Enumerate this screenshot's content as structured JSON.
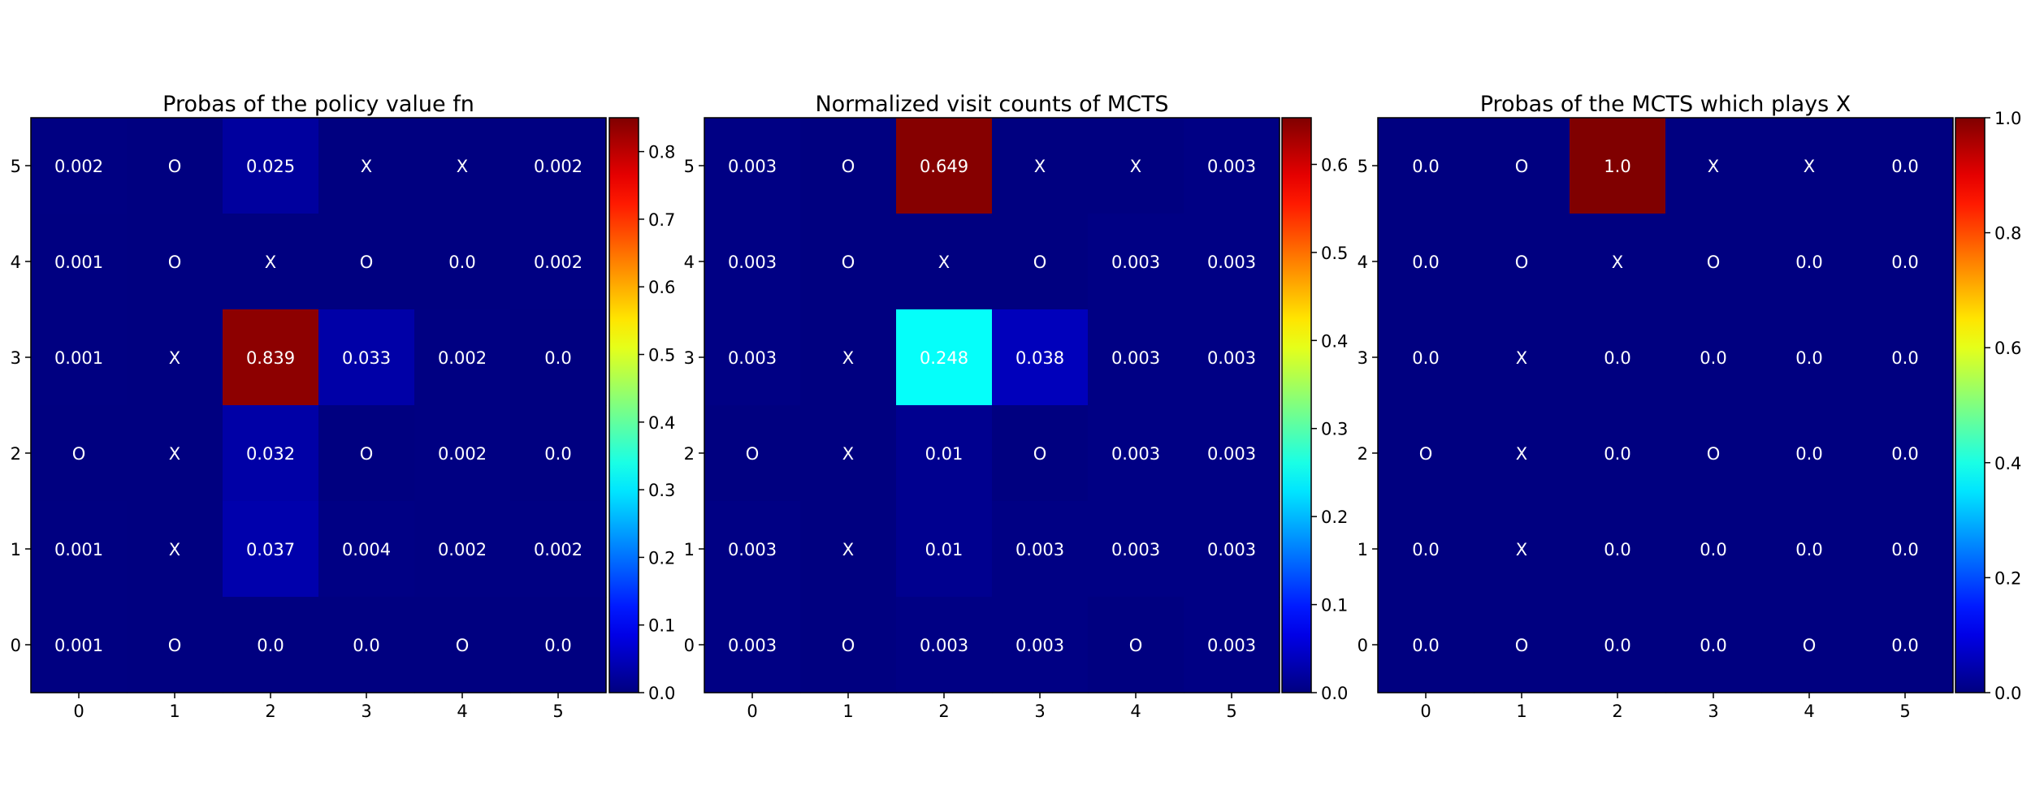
{
  "chart_data": [
    {
      "type": "heatmap",
      "title": "Probas of the policy value fn",
      "xlabel": "",
      "ylabel": "",
      "x_ticks": [
        "0",
        "1",
        "2",
        "3",
        "4",
        "5"
      ],
      "y_ticks_top_to_bottom": [
        "5",
        "4",
        "3",
        "2",
        "1",
        "0"
      ],
      "colormap": "jet",
      "vmin": 0.0,
      "vmax": 0.85,
      "colorbar_ticks": [
        "0.0",
        "0.1",
        "0.2",
        "0.3",
        "0.4",
        "0.5",
        "0.6",
        "0.7",
        "0.8"
      ],
      "rows_top_to_bottom": [
        [
          "0.002",
          "O",
          "0.025",
          "X",
          "X",
          "0.002"
        ],
        [
          "0.001",
          "O",
          "X",
          "O",
          "0.0",
          "0.002"
        ],
        [
          "0.001",
          "X",
          "0.839",
          "0.033",
          "0.002",
          "0.0"
        ],
        [
          "O",
          "X",
          "0.032",
          "O",
          "0.002",
          "0.0"
        ],
        [
          "0.001",
          "X",
          "0.037",
          "0.004",
          "0.002",
          "0.002"
        ],
        [
          "0.001",
          "O",
          "0.0",
          "0.0",
          "O",
          "0.0"
        ]
      ]
    },
    {
      "type": "heatmap",
      "title": "Normalized visit counts of MCTS",
      "xlabel": "",
      "ylabel": "",
      "x_ticks": [
        "0",
        "1",
        "2",
        "3",
        "4",
        "5"
      ],
      "y_ticks_top_to_bottom": [
        "5",
        "4",
        "3",
        "2",
        "1",
        "0"
      ],
      "colormap": "jet",
      "vmin": 0.0,
      "vmax": 0.653,
      "colorbar_ticks": [
        "0.0",
        "0.1",
        "0.2",
        "0.3",
        "0.4",
        "0.5",
        "0.6"
      ],
      "rows_top_to_bottom": [
        [
          "0.003",
          "O",
          "0.649",
          "X",
          "X",
          "0.003"
        ],
        [
          "0.003",
          "O",
          "X",
          "O",
          "0.003",
          "0.003"
        ],
        [
          "0.003",
          "X",
          "0.248",
          "0.038",
          "0.003",
          "0.003"
        ],
        [
          "O",
          "X",
          "0.01",
          "O",
          "0.003",
          "0.003"
        ],
        [
          "0.003",
          "X",
          "0.01",
          "0.003",
          "0.003",
          "0.003"
        ],
        [
          "0.003",
          "O",
          "0.003",
          "0.003",
          "O",
          "0.003"
        ]
      ]
    },
    {
      "type": "heatmap",
      "title": "Probas of the MCTS which plays X",
      "xlabel": "",
      "ylabel": "",
      "x_ticks": [
        "0",
        "1",
        "2",
        "3",
        "4",
        "5"
      ],
      "y_ticks_top_to_bottom": [
        "5",
        "4",
        "3",
        "2",
        "1",
        "0"
      ],
      "colormap": "jet",
      "vmin": 0.0,
      "vmax": 1.0,
      "colorbar_ticks": [
        "0.0",
        "0.2",
        "0.4",
        "0.6",
        "0.8",
        "1.0"
      ],
      "rows_top_to_bottom": [
        [
          "0.0",
          "O",
          "1.0",
          "X",
          "X",
          "0.0"
        ],
        [
          "0.0",
          "O",
          "X",
          "O",
          "0.0",
          "0.0"
        ],
        [
          "0.0",
          "X",
          "0.0",
          "0.0",
          "0.0",
          "0.0"
        ],
        [
          "O",
          "X",
          "0.0",
          "O",
          "0.0",
          "0.0"
        ],
        [
          "0.0",
          "X",
          "0.0",
          "0.0",
          "0.0",
          "0.0"
        ],
        [
          "0.0",
          "O",
          "0.0",
          "0.0",
          "O",
          "0.0"
        ]
      ]
    }
  ]
}
